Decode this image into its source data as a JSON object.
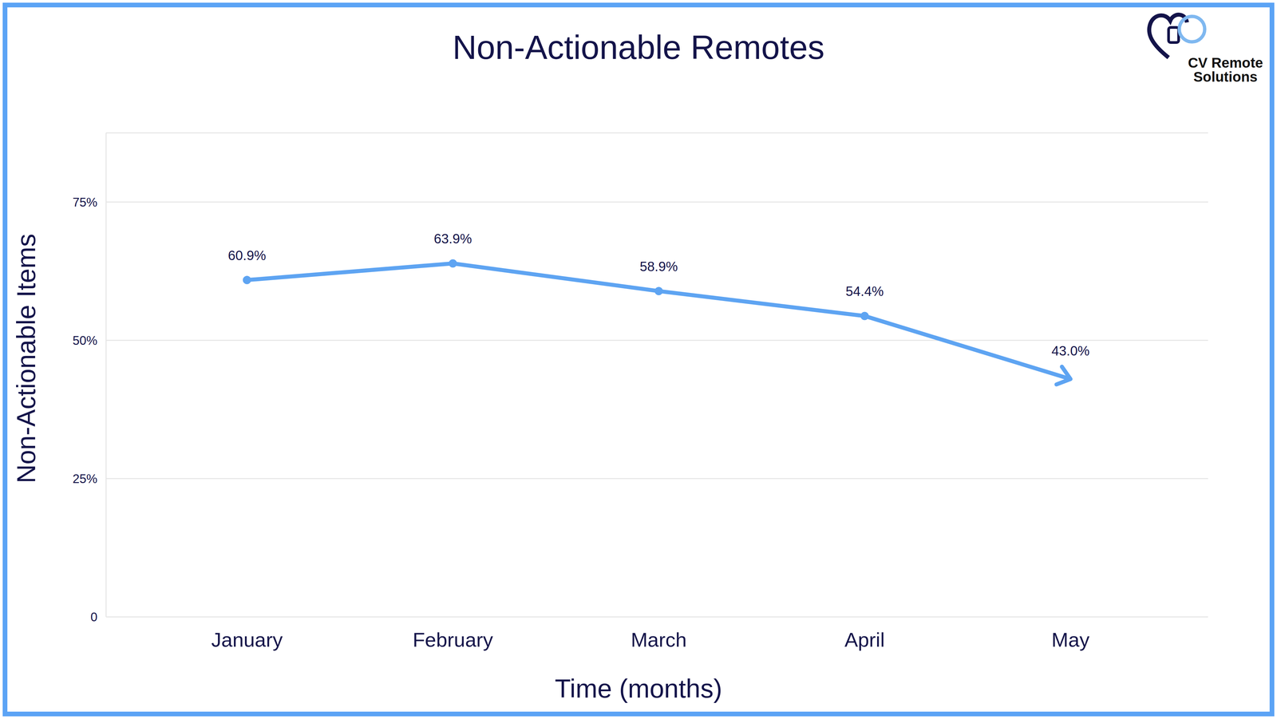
{
  "chart_data": {
    "type": "line",
    "title": "Non-Actionable Remotes",
    "logo": "CV Remote Solutions",
    "x_label": "Time (months)",
    "y_label": "Non-Actionable Items",
    "categories": [
      "January",
      "February",
      "March",
      "April",
      "May"
    ],
    "values": [
      60.9,
      63.9,
      58.9,
      54.4,
      43.0
    ],
    "value_labels": [
      "60.9%",
      "63.9%",
      "58.9%",
      "54.4%",
      "43.0%"
    ],
    "color": "#5ea4f2",
    "ylim": [
      0,
      87.5
    ],
    "yticks": [
      0,
      {
        "value": 25,
        "label": "25%"
      },
      {
        "value": 50,
        "label": "50%"
      },
      {
        "value": 75,
        "label": "75%"
      }
    ],
    "grid": true,
    "data_labels": true,
    "marker": "circle"
  }
}
